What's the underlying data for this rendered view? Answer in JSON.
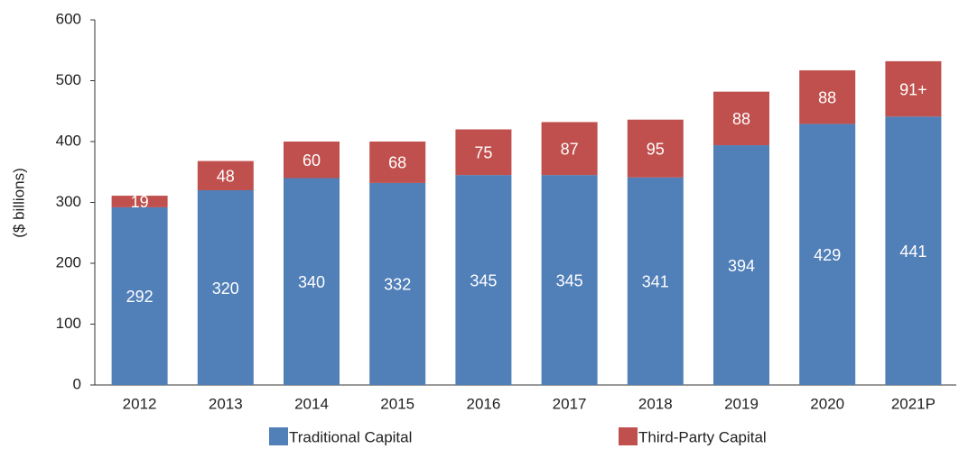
{
  "chart_data": {
    "type": "stacked_bar",
    "categories": [
      "2012",
      "2013",
      "2014",
      "2015",
      "2016",
      "2017",
      "2018",
      "2019",
      "2020",
      "2021P"
    ],
    "y_label": "($ billions)",
    "series": [
      {
        "name": "Traditional Capital",
        "color": "#517fb8",
        "values": [
          292,
          320,
          340,
          332,
          345,
          345,
          341,
          394,
          429,
          441
        ]
      },
      {
        "name": "Third-Party Capital",
        "color": "#c0504d",
        "values": [
          19,
          48,
          60,
          68,
          75,
          87,
          95,
          88,
          88,
          91
        ],
        "value_labels": [
          "19",
          "48",
          "60",
          "68",
          "75",
          "87",
          "95",
          "88",
          "88",
          "91+"
        ]
      }
    ],
    "ylim": [
      0,
      600
    ],
    "yticks": [
      0,
      100,
      200,
      300,
      400,
      500,
      600
    ],
    "grid": false,
    "legend": "bottom"
  }
}
